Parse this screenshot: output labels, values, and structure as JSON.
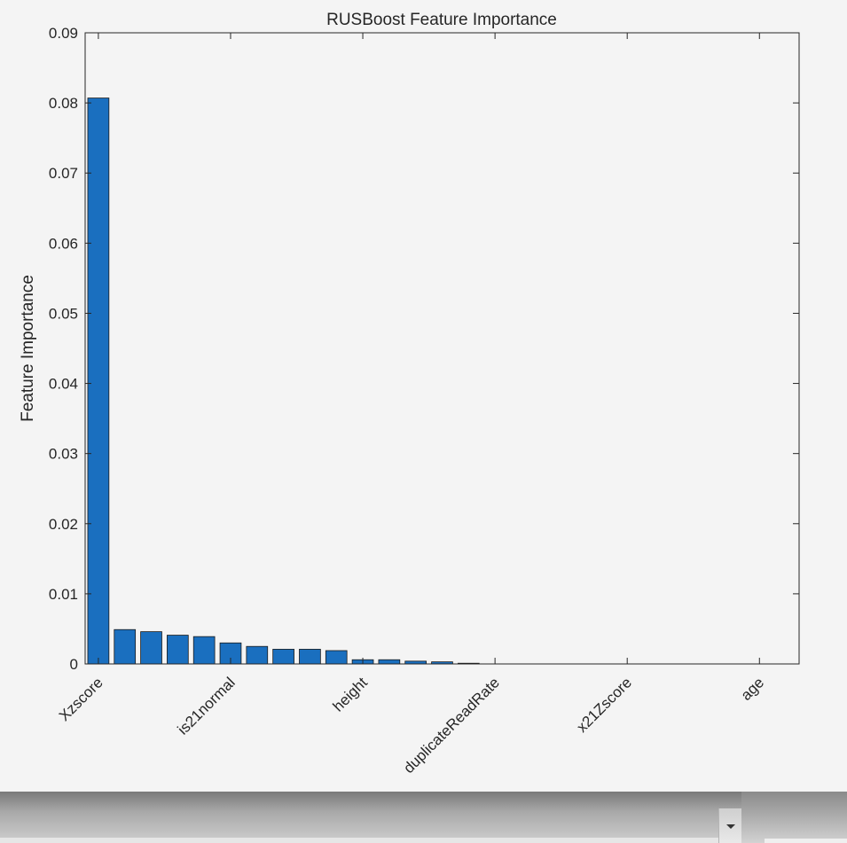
{
  "chart_data": {
    "type": "bar",
    "title": "RUSBoost Feature Importance",
    "xlabel": "",
    "ylabel": "Feature Importance",
    "ylim": [
      0,
      0.09
    ],
    "yticks": [
      "0",
      "0.01",
      "0.02",
      "0.03",
      "0.04",
      "0.05",
      "0.06",
      "0.07",
      "0.08",
      "0.09"
    ],
    "ytick_values": [
      0,
      0.01,
      0.02,
      0.03,
      0.04,
      0.05,
      0.06,
      0.07,
      0.08,
      0.09
    ],
    "xlim": [
      0.5,
      27.5
    ],
    "xticks": [
      {
        "pos": 1,
        "label": "Xzscore"
      },
      {
        "pos": 6,
        "label": "is21normal"
      },
      {
        "pos": 11,
        "label": "height"
      },
      {
        "pos": 16,
        "label": "duplicateReadRate"
      },
      {
        "pos": 21,
        "label": "x21Zscore"
      },
      {
        "pos": 26,
        "label": "age"
      }
    ],
    "values": [
      0.0807,
      0.0049,
      0.0046,
      0.0041,
      0.0039,
      0.003,
      0.0025,
      0.0021,
      0.0021,
      0.0019,
      0.0006,
      0.0006,
      0.0004,
      0.0003,
      0.0001,
      0,
      0,
      0,
      0,
      0,
      0,
      0,
      0,
      0,
      0,
      0,
      0
    ],
    "bar_color": "#1a6fbf",
    "grid": false
  },
  "window": {
    "dropdown_icon": "chevron-down-icon"
  }
}
